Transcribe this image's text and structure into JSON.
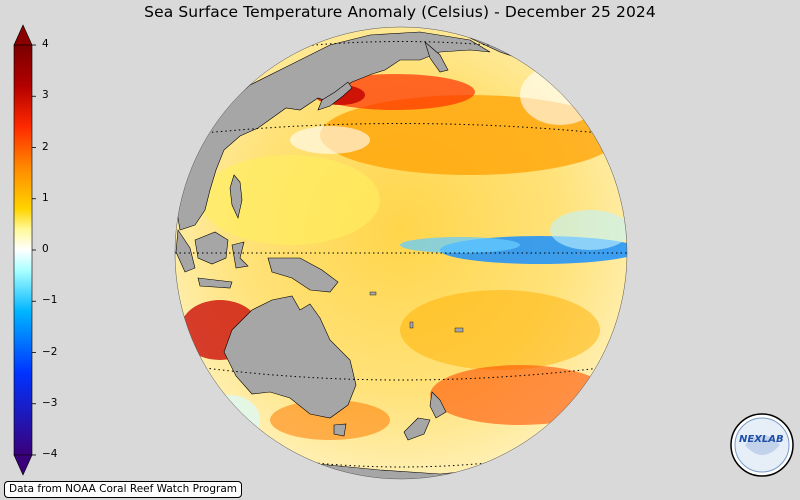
{
  "title": "Sea Surface Temperature Anomaly (Celsius) - December 25 2024",
  "colorbar": {
    "ticks": [
      {
        "value": 4,
        "label": "4"
      },
      {
        "value": 3,
        "label": "3"
      },
      {
        "value": 2,
        "label": "2"
      },
      {
        "value": 1,
        "label": "1"
      },
      {
        "value": 0,
        "label": "0"
      },
      {
        "value": -1,
        "label": "−1"
      },
      {
        "value": -2,
        "label": "−2"
      },
      {
        "value": -3,
        "label": "−3"
      },
      {
        "value": -4,
        "label": "−4"
      }
    ],
    "range": [
      -4,
      4
    ],
    "colors": [
      "#3a007a",
      "#0033ff",
      "#00b5ff",
      "#aaffff",
      "#ffffff",
      "#fff99a",
      "#ffd400",
      "#ff8a00",
      "#ff2a00",
      "#b30000",
      "#7a0000"
    ]
  },
  "colors": {
    "background": "#d9d9d9",
    "land": "#a6a6a6",
    "warm_anomaly": "#ffb000",
    "cool_anomaly": "#2aa8ff"
  },
  "credit": "Data from NOAA Coral Reef Watch Program",
  "logo": {
    "name": "nexlab-logo",
    "text": "NEXLAB"
  }
}
